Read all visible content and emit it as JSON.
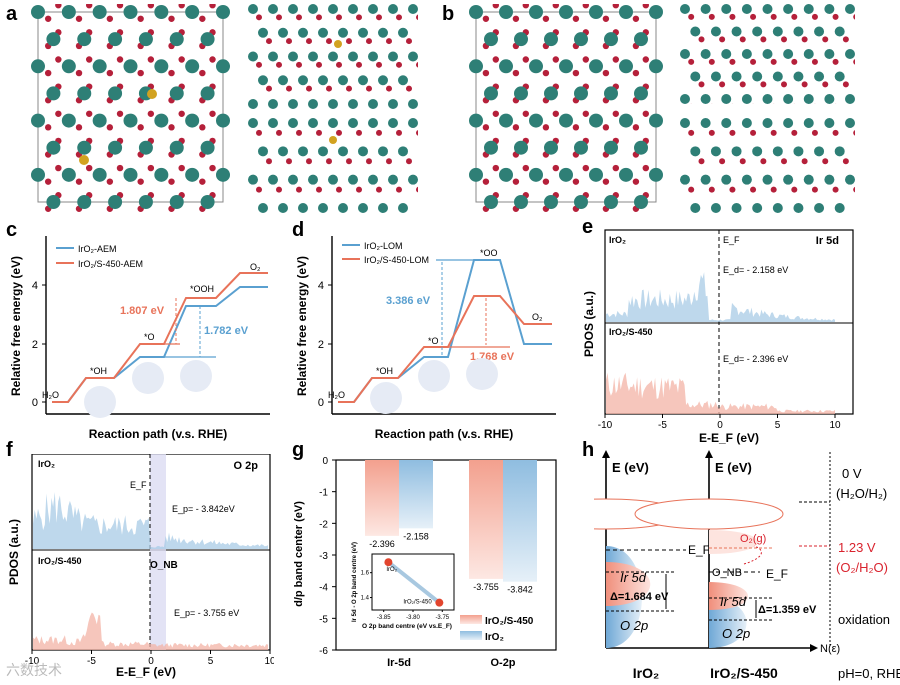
{
  "panel_labels": [
    "a",
    "b",
    "c",
    "d",
    "e",
    "f",
    "g",
    "h"
  ],
  "colors": {
    "ir": "#2e7f76",
    "o": "#b5203a",
    "s": "#d2a220",
    "red": "#e8735a",
    "blue": "#5aa0d0",
    "red_fill": "#f3b3a6",
    "blue_fill": "#a8cbe6"
  },
  "panel_c": {
    "legend": [
      "IrO₂-AEM",
      "IrO₂/S-450-AEM"
    ],
    "ylabel": "Relative free energy (eV)",
    "xlabel": "Reaction path (v.s. RHE)",
    "species": [
      "H₂O",
      "*OH",
      "*O",
      "*OOH",
      "O₂"
    ],
    "ann_red": "1.807 eV",
    "ann_blue": "1.782 eV",
    "yticks": [
      "0",
      "2",
      "4"
    ]
  },
  "panel_d": {
    "legend": [
      "IrO₂-LOM",
      "IrO₂/S-450-LOM"
    ],
    "ylabel": "Relative free energy (eV)",
    "xlabel": "Reaction path (v.s. RHE)",
    "species": [
      "H₂O",
      "*OH",
      "*O",
      "*OO",
      "O₂"
    ],
    "ann_blue": "3.386 eV",
    "ann_red": "1.768 eV",
    "yticks": [
      "0",
      "2",
      "4"
    ]
  },
  "panel_e": {
    "top_label": "IrO₂",
    "bottom_label": "IrO₂/S-450",
    "ef": "E_F",
    "orbital": "Ir 5d",
    "ed_top": "E_d= - 2.158 eV",
    "ed_bottom": "E_d= - 2.396 eV",
    "ylabel": "PDOS (a.u.)",
    "xlabel": "E-E_F (eV)",
    "xticks": [
      "-10",
      "-5",
      "0",
      "5",
      "10"
    ]
  },
  "panel_f": {
    "top_label": "IrO₂",
    "bottom_label": "IrO₂/S-450",
    "ef": "E_F",
    "orbital": "O 2p",
    "onb": "O_NB",
    "ep_top": "E_p= - 3.842eV",
    "ep_bottom": "E_p= - 3.755 eV",
    "ylabel": "PDOS (a.u.)",
    "xlabel": "E-E_F (eV)",
    "xticks": [
      "-10",
      "-5",
      "0",
      "5",
      "10"
    ]
  },
  "chart_data": [
    {
      "type": "bar",
      "title": "g",
      "categories": [
        "Ir-5d",
        "O-2p"
      ],
      "series": [
        {
          "name": "IrO₂/S-450",
          "values": [
            -2.396,
            -3.755
          ]
        },
        {
          "name": "IrO₂",
          "values": [
            -2.158,
            -3.842
          ]
        }
      ],
      "ylabel": "d/p band center (eV)",
      "ylim": [
        -6,
        0
      ],
      "yticks": [
        "0",
        "-1",
        "-2",
        "-3",
        "-4",
        "-5",
        "-6"
      ],
      "value_labels": [
        "-2.396",
        "-2.158",
        "-3.755",
        "-3.842"
      ],
      "legend": [
        "IrO₂/S-450",
        "IrO₂"
      ]
    },
    {
      "type": "scatter",
      "title": "g inset",
      "points": [
        {
          "name": "IrO₂",
          "x": -3.842,
          "y": 1.684
        },
        {
          "name": "IrO₂/S-450",
          "x": -3.755,
          "y": 1.359
        }
      ],
      "xlabel": "O 2p band centre (eV vs.E_F)",
      "ylabel": "Ir 5d - O 2p band centre (eV)",
      "xticks": [
        "-3.85",
        "-3.80",
        "-3.75"
      ],
      "yticks": [
        "1.4",
        "1.6"
      ],
      "xlim": [
        -3.87,
        -3.73
      ],
      "ylim": [
        1.3,
        1.75
      ]
    }
  ],
  "panel_h": {
    "axis_label": "E (eV)",
    "ef": "E_F",
    "ir5d": "Ir 5d",
    "o2p": "O 2p",
    "onb": "O_NB",
    "o2g": "O₂(g)",
    "delta_left": "Δ=1.684 eV",
    "delta_right": "Δ=1.359 eV",
    "nE": "N(ε)",
    "v0": "0 V",
    "h2o_h2": "(H₂O/H₂)",
    "v123": "1.23 V",
    "o2_h2o": "(O₂/H₂O)",
    "oxidation": "oxidation",
    "bottom_left": "IrO₂",
    "bottom_right": "IrO₂/S-450",
    "condition": "pH=0, RHE"
  },
  "watermark": "六数技术"
}
